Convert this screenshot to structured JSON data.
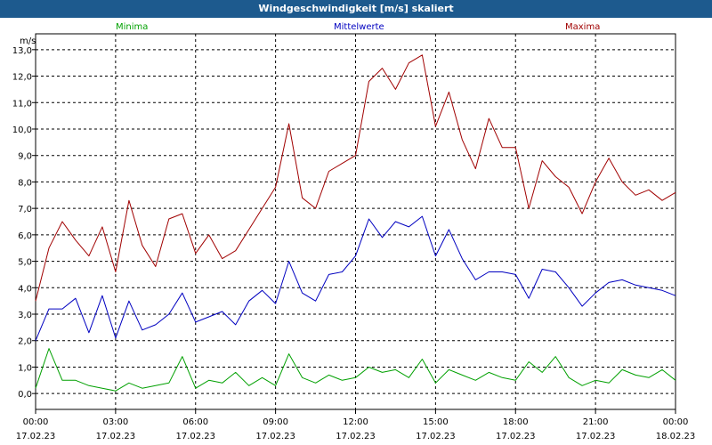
{
  "window": {
    "title": "Windgeschwindigkeit [m/s] skaliert"
  },
  "chart_data": {
    "type": "line",
    "title": "Windgeschwindigkeit [m/s] skaliert",
    "ylabel": "m/s",
    "ylim": [
      -0.6,
      13.6
    ],
    "grid": true,
    "y_ticks": [
      "0,0",
      "1,0",
      "2,0",
      "3,0",
      "4,0",
      "5,0",
      "6,0",
      "7,0",
      "8,0",
      "9,0",
      "10,0",
      "11,0",
      "12,0",
      "13,0"
    ],
    "x_hours": [
      0,
      3,
      6,
      9,
      12,
      15,
      18,
      21,
      24
    ],
    "x_ticks": [
      {
        "time": "00:00",
        "date": "17.02.23"
      },
      {
        "time": "03:00",
        "date": "17.02.23"
      },
      {
        "time": "06:00",
        "date": "17.02.23"
      },
      {
        "time": "09:00",
        "date": "17.02.23"
      },
      {
        "time": "12:00",
        "date": "17.02.23"
      },
      {
        "time": "15:00",
        "date": "17.02.23"
      },
      {
        "time": "18:00",
        "date": "17.02.23"
      },
      {
        "time": "21:00",
        "date": "17.02.23"
      },
      {
        "time": "00:00",
        "date": "18.02.23"
      }
    ],
    "x": [
      0,
      0.5,
      1,
      1.5,
      2,
      2.5,
      3,
      3.5,
      4,
      4.5,
      5,
      5.5,
      6,
      6.5,
      7,
      7.5,
      8,
      8.5,
      9,
      9.5,
      10,
      10.5,
      11,
      11.5,
      12,
      12.5,
      13,
      13.5,
      14,
      14.5,
      15,
      15.5,
      16,
      16.5,
      17,
      17.5,
      18,
      18.5,
      19,
      19.5,
      20,
      20.5,
      21,
      21.5,
      22,
      22.5,
      23,
      23.5,
      24
    ],
    "series": [
      {
        "name": "Minima",
        "color": "#00a000",
        "values": [
          0.2,
          1.7,
          0.5,
          0.5,
          0.3,
          0.2,
          0.1,
          0.4,
          0.2,
          0.3,
          0.4,
          1.4,
          0.2,
          0.5,
          0.4,
          0.8,
          0.3,
          0.6,
          0.3,
          1.5,
          0.6,
          0.4,
          0.7,
          0.5,
          0.6,
          1.0,
          0.8,
          0.9,
          0.6,
          1.3,
          0.4,
          0.9,
          0.7,
          0.5,
          0.8,
          0.6,
          0.5,
          1.2,
          0.8,
          1.4,
          0.6,
          0.3,
          0.5,
          0.4,
          0.9,
          0.7,
          0.6,
          0.9,
          0.5
        ]
      },
      {
        "name": "Mittelwerte",
        "color": "#0000c0",
        "values": [
          2.0,
          3.2,
          3.2,
          3.6,
          2.3,
          3.7,
          2.1,
          3.5,
          2.4,
          2.6,
          3.0,
          3.8,
          2.7,
          2.9,
          3.1,
          2.6,
          3.5,
          3.9,
          3.4,
          5.0,
          3.8,
          3.5,
          4.5,
          4.6,
          5.2,
          6.6,
          5.9,
          6.5,
          6.3,
          6.7,
          5.2,
          6.2,
          5.1,
          4.3,
          4.6,
          4.6,
          4.5,
          3.6,
          4.7,
          4.6,
          4.0,
          3.3,
          3.8,
          4.2,
          4.3,
          4.1,
          4.0,
          3.9,
          3.7
        ]
      },
      {
        "name": "Maxima",
        "color": "#a00000",
        "values": [
          3.5,
          5.5,
          6.5,
          5.8,
          5.2,
          6.3,
          4.6,
          7.3,
          5.6,
          4.8,
          6.6,
          6.8,
          5.3,
          6.0,
          5.1,
          5.4,
          6.2,
          7.0,
          7.8,
          10.2,
          7.4,
          7.0,
          8.4,
          8.7,
          9.0,
          11.8,
          12.3,
          11.5,
          12.5,
          12.8,
          10.1,
          11.4,
          9.6,
          8.5,
          10.4,
          9.3,
          9.3,
          7.0,
          8.8,
          8.2,
          7.8,
          6.8,
          8.0,
          8.9,
          8.0,
          7.5,
          7.7,
          7.3,
          7.6
        ]
      }
    ]
  }
}
